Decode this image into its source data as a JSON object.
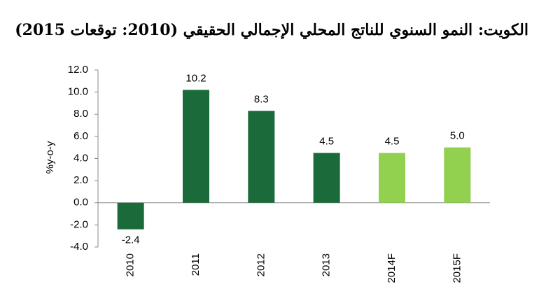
{
  "chart_data": {
    "type": "bar",
    "title": "الكويت: النمو السنوي للناتج المحلي الإجمالي الحقيقي (2010: توقعات 2015)",
    "y_label": "%y-o-y",
    "categories": [
      "2010",
      "2011",
      "2012",
      "2013",
      "2014F",
      "2015F"
    ],
    "values": [
      -2.4,
      10.2,
      8.3,
      4.5,
      4.5,
      5.0
    ],
    "value_labels": [
      "-2.4",
      "10.2",
      "8.3",
      "4.5",
      "4.5",
      "5.0"
    ],
    "colors": [
      "#1b6b3a",
      "#1b6b3a",
      "#1b6b3a",
      "#1b6b3a",
      "#92d050",
      "#92d050"
    ],
    "ylim": [
      -4,
      12
    ],
    "yticks": [
      {
        "value": -4,
        "label": "-4.0"
      },
      {
        "value": -2,
        "label": "-2.0"
      },
      {
        "value": 0,
        "label": "0.0"
      },
      {
        "value": 2,
        "label": "2.0"
      },
      {
        "value": 4,
        "label": "4.0"
      },
      {
        "value": 6,
        "label": "6.0"
      },
      {
        "value": 8,
        "label": "8.0"
      },
      {
        "value": 10,
        "label": "10.0"
      },
      {
        "value": 12,
        "label": "12.0"
      }
    ],
    "grid": false
  }
}
